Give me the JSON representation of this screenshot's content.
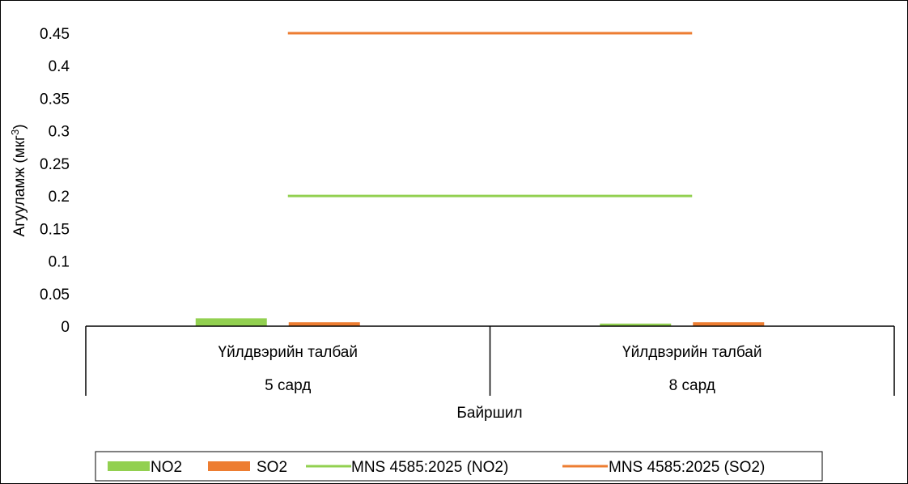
{
  "chart_data": {
    "type": "bar",
    "title": "",
    "xlabel": "Байршил",
    "ylabel": "Агууламж (мкг",
    "ylabel_superscript": "3",
    "ylabel_suffix": ")",
    "ylim": [
      0,
      0.45
    ],
    "yticks": [
      0,
      0.05,
      0.1,
      0.15,
      0.2,
      0.25,
      0.3,
      0.35,
      0.4,
      0.45
    ],
    "ytick_labels": [
      "0",
      "0.05",
      "0.1",
      "0.15",
      "0.2",
      "0.25",
      "0.3",
      "0.35",
      "0.4",
      "0.45"
    ],
    "categories": [
      {
        "location": "Үйлдвэрийн талбай",
        "period": "5 сард"
      },
      {
        "location": "Үйлдвэрийн талбай",
        "period": "8 сард"
      }
    ],
    "series": [
      {
        "name": "NO2",
        "kind": "bar",
        "color": "#92D050",
        "values": [
          0.012,
          0.004
        ]
      },
      {
        "name": "SO2",
        "kind": "bar",
        "color": "#ED7D31",
        "values": [
          0.006,
          0.006
        ]
      },
      {
        "name": "MNS 4585:2025 (NO2)",
        "kind": "line",
        "color": "#92D050",
        "values": [
          0.2,
          0.2
        ]
      },
      {
        "name": "MNS 4585:2025 (SO2)",
        "kind": "line",
        "color": "#ED7D31",
        "values": [
          0.45,
          0.45
        ]
      }
    ],
    "grid": false,
    "legend_position": "bottom"
  }
}
